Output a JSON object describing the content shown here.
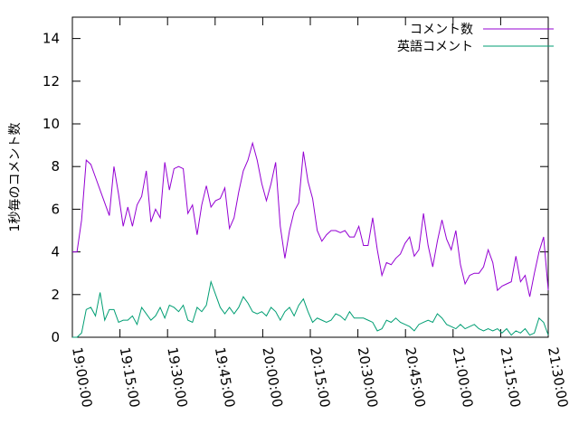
{
  "chart_data": {
    "type": "line",
    "title": "",
    "xlabel": "",
    "ylabel": "1秒毎のコメント数",
    "ylim": [
      0,
      15
    ],
    "yticks": [
      0,
      2,
      4,
      6,
      8,
      10,
      12,
      14
    ],
    "xlim_minutes": [
      0,
      90
    ],
    "xticks": [
      "19:00:00",
      "19:15:00",
      "19:30:00",
      "19:45:00",
      "20:00:00",
      "20:15:00",
      "20:30:00",
      "20:45:00",
      "21:00:00",
      "21:15:00",
      "21:30:00"
    ],
    "grid": false,
    "legend": "top-right",
    "colors": {
      "series1": "#9400d3",
      "series2": "#009e73"
    },
    "series": [
      {
        "name": "コメント数",
        "values": [
          4.0,
          4.0,
          5.5,
          8.3,
          8.1,
          7.5,
          6.9,
          6.3,
          5.7,
          8.0,
          6.7,
          5.2,
          6.1,
          5.2,
          6.2,
          6.6,
          7.8,
          5.4,
          6.0,
          5.6,
          8.2,
          6.9,
          7.9,
          8.0,
          7.9,
          5.8,
          6.2,
          4.8,
          6.2,
          7.1,
          6.1,
          6.4,
          6.5,
          7.0,
          5.1,
          5.6,
          6.8,
          7.8,
          8.3,
          9.1,
          8.3,
          7.2,
          6.4,
          7.2,
          8.2,
          5.2,
          3.7,
          5.0,
          5.9,
          6.3,
          8.7,
          7.3,
          6.5,
          5.0,
          4.5,
          4.8,
          5.0,
          5.0,
          4.9,
          5.0,
          4.7,
          4.7,
          5.2,
          4.3,
          4.3,
          5.6,
          4.1,
          2.9,
          3.5,
          3.4,
          3.7,
          3.9,
          4.4,
          4.7,
          3.8,
          4.1,
          5.8,
          4.3,
          3.3,
          4.5,
          5.5,
          4.6,
          4.1,
          5.0,
          3.4,
          2.5,
          2.9,
          3.0,
          3.0,
          3.3,
          4.1,
          3.5,
          2.2,
          2.4,
          2.5,
          2.6,
          3.8,
          2.6,
          2.9,
          1.9,
          3.0,
          4.0,
          4.7,
          2.2
        ],
        "color": "#9400d3"
      },
      {
        "name": "英語コメント",
        "values": [
          0.0,
          0.0,
          0.2,
          1.3,
          1.4,
          1.0,
          2.1,
          0.8,
          1.3,
          1.3,
          0.7,
          0.8,
          0.8,
          1.0,
          0.6,
          1.4,
          1.1,
          0.8,
          1.0,
          1.4,
          0.9,
          1.5,
          1.4,
          1.2,
          1.5,
          0.8,
          0.7,
          1.4,
          1.2,
          1.5,
          2.6,
          2.0,
          1.4,
          1.1,
          1.4,
          1.1,
          1.4,
          1.9,
          1.6,
          1.2,
          1.1,
          1.2,
          1.0,
          1.4,
          1.2,
          0.8,
          1.2,
          1.4,
          1.0,
          1.5,
          1.8,
          1.2,
          0.7,
          0.9,
          0.8,
          0.7,
          0.8,
          1.1,
          1.0,
          0.8,
          1.2,
          0.9,
          0.9,
          0.9,
          0.8,
          0.7,
          0.3,
          0.4,
          0.8,
          0.7,
          0.9,
          0.7,
          0.6,
          0.5,
          0.3,
          0.6,
          0.7,
          0.8,
          0.7,
          1.1,
          0.9,
          0.6,
          0.5,
          0.4,
          0.6,
          0.4,
          0.5,
          0.6,
          0.4,
          0.3,
          0.4,
          0.3,
          0.4,
          0.2,
          0.4,
          0.1,
          0.3,
          0.2,
          0.4,
          0.1,
          0.2,
          0.9,
          0.7,
          0.1
        ],
        "color": "#009e73"
      }
    ]
  }
}
